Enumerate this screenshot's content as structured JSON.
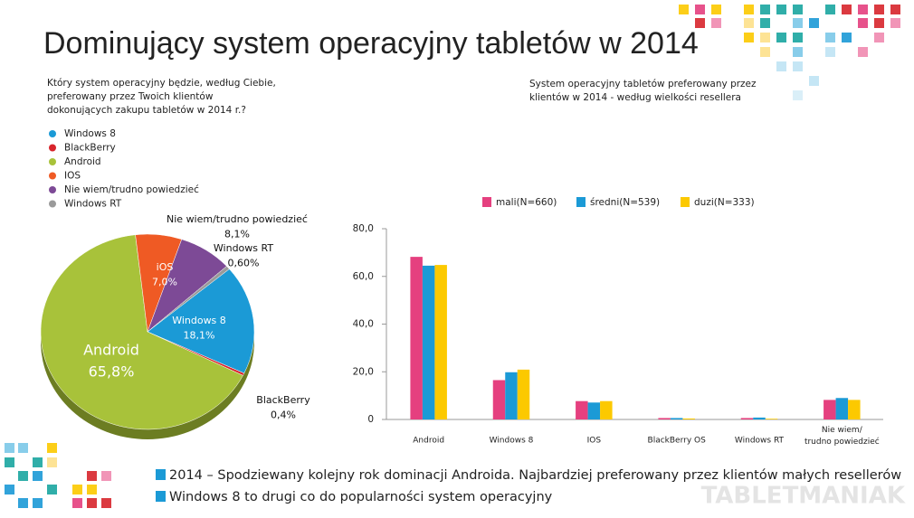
{
  "header": {
    "title": "Dominujący system operacyjny tabletów w 2014",
    "brand": "TABLETMANIAK"
  },
  "chart_data": [
    {
      "type": "pie",
      "subtitle": "Który system operacyjny będzie, według Ciebie,\npreferowany przez Twoich klientów\ndokonujących zakupu tabletów w 2014 r.?",
      "categories": [
        "Windows 8",
        "BlackBerry",
        "Android",
        "IOS",
        "Nie wiem/trudno powiedzieć",
        "Windows RT"
      ],
      "labels": [
        "Windows 8",
        "BlackBerry",
        "Android",
        "iOS",
        "Nie wiem/trudno powiedzieć",
        "Windows RT"
      ],
      "values": [
        18.1,
        0.4,
        65.8,
        7.0,
        8.1,
        0.6
      ],
      "value_labels": [
        "18,1%",
        "0,4%",
        "65,8%",
        "7,0%",
        "8,1%",
        "0,60%"
      ],
      "colors": [
        "#1b9ad6",
        "#d8252c",
        "#a8c23a",
        "#ef5a24",
        "#7d4a96",
        "#9a9a9a"
      ]
    },
    {
      "type": "bar",
      "subtitle": "System operacyjny tabletów preferowany przez\nklientów w 2014 - według wielkości resellera",
      "categories": [
        "Android",
        "Windows 8",
        "IOS",
        "BlackBerry OS",
        "Windows RT",
        "Nie wiem/\ntrudno powiedzieć"
      ],
      "series": [
        {
          "name": "mali(N=660)",
          "color": "#e5407f",
          "values": [
            68.2,
            16.5,
            7.7,
            0.6,
            0.6,
            8.2
          ]
        },
        {
          "name": "średni(N=539)",
          "color": "#1b9ad6",
          "values": [
            64.5,
            19.8,
            7.1,
            0.6,
            0.8,
            9.0
          ]
        },
        {
          "name": "duzi(N=333)",
          "color": "#fcc900",
          "values": [
            64.8,
            20.9,
            7.7,
            0.4,
            0.3,
            8.2
          ]
        }
      ],
      "ylim": [
        0,
        80
      ],
      "yticks": [
        0,
        {
          "value": 20,
          "label": "20,0"
        },
        {
          "value": 40,
          "label": "40,0"
        },
        {
          "value": 60,
          "label": "60,0"
        },
        {
          "value": 80,
          "label": "80,0"
        }
      ]
    }
  ],
  "bullets": [
    "2014 – Spodziewany kolejny rok dominacji Androida. Najbardziej preferowany przez klientów małych resellerów",
    "Windows 8 to drugi co do popularności system operacyjny"
  ]
}
